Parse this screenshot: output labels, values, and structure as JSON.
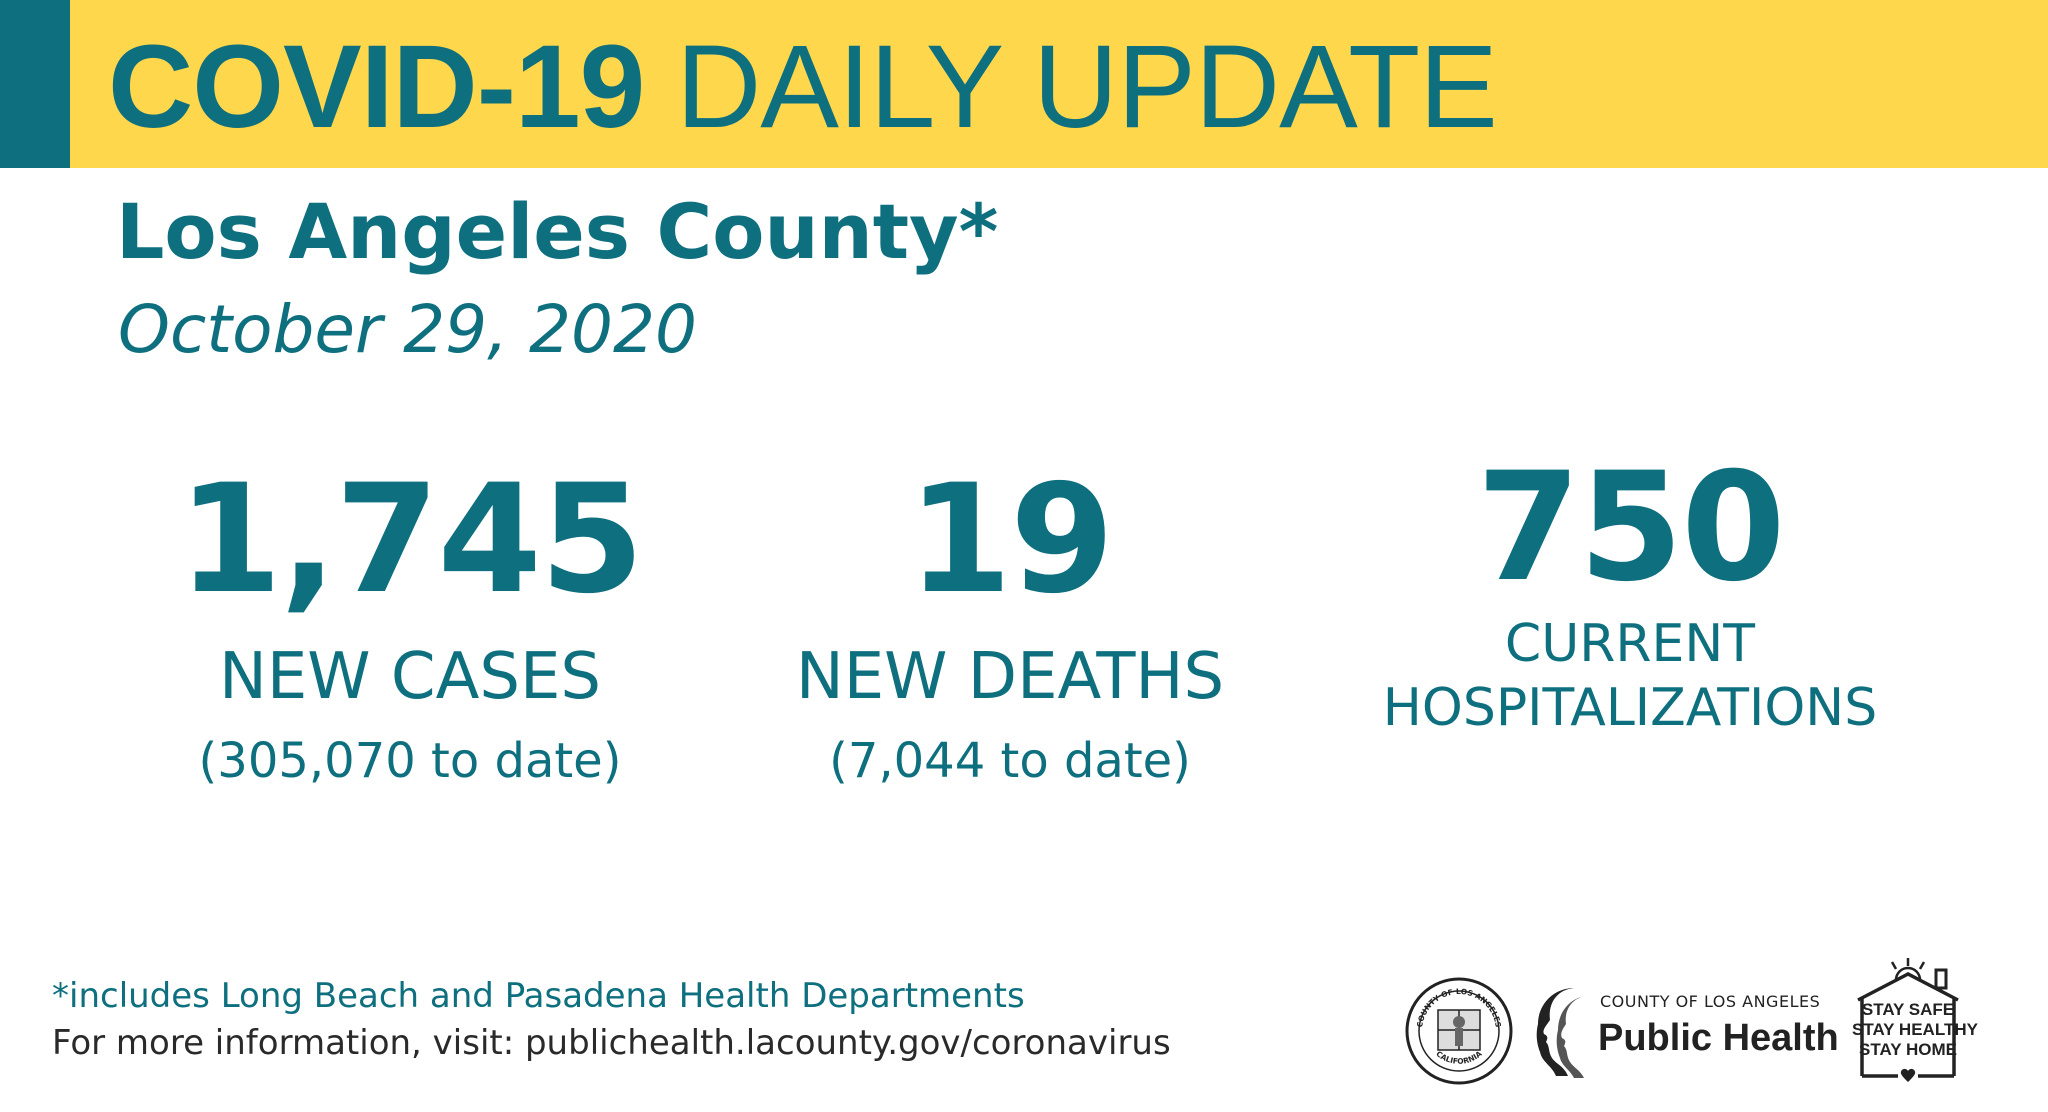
{
  "banner": {
    "title_bold": "COVID-19",
    "title_regular": "DAILY UPDATE",
    "background_color": "#fed74c",
    "accent_color": "#0e6f7f"
  },
  "heading": {
    "county": "Los Angeles County*",
    "date": "October 29, 2020"
  },
  "stats": [
    {
      "value": "1,745",
      "label": "NEW CASES",
      "sub": "(305,070 to date)"
    },
    {
      "value": "19",
      "label": "NEW DEATHS",
      "sub": "(7,044 to date)"
    },
    {
      "value": "750",
      "label_line1": "CURRENT",
      "label_line2": "HOSPITALIZATIONS"
    }
  ],
  "footer": {
    "note": "*includes Long Beach and Pasadena Health Departments",
    "info": "For more information, visit: publichealth.lacounty.gov/coronavirus"
  },
  "logos": {
    "seal": {
      "icon": "county-seal-icon",
      "text_top": "COUNTY OF LOS ANGELES",
      "text_bottom": "CALIFORNIA"
    },
    "public_health": {
      "icon": "profile-faces-icon",
      "small": "COUNTY OF LOS ANGELES",
      "big": "Public Health"
    },
    "stay_safe": {
      "icon": "house-sun-icon",
      "lines": [
        "STAY SAFE",
        "STAY HEALTHY",
        "STAY HOME"
      ]
    }
  },
  "colors": {
    "primary": "#0e6f7f",
    "text_dark": "#2a2a2a"
  }
}
